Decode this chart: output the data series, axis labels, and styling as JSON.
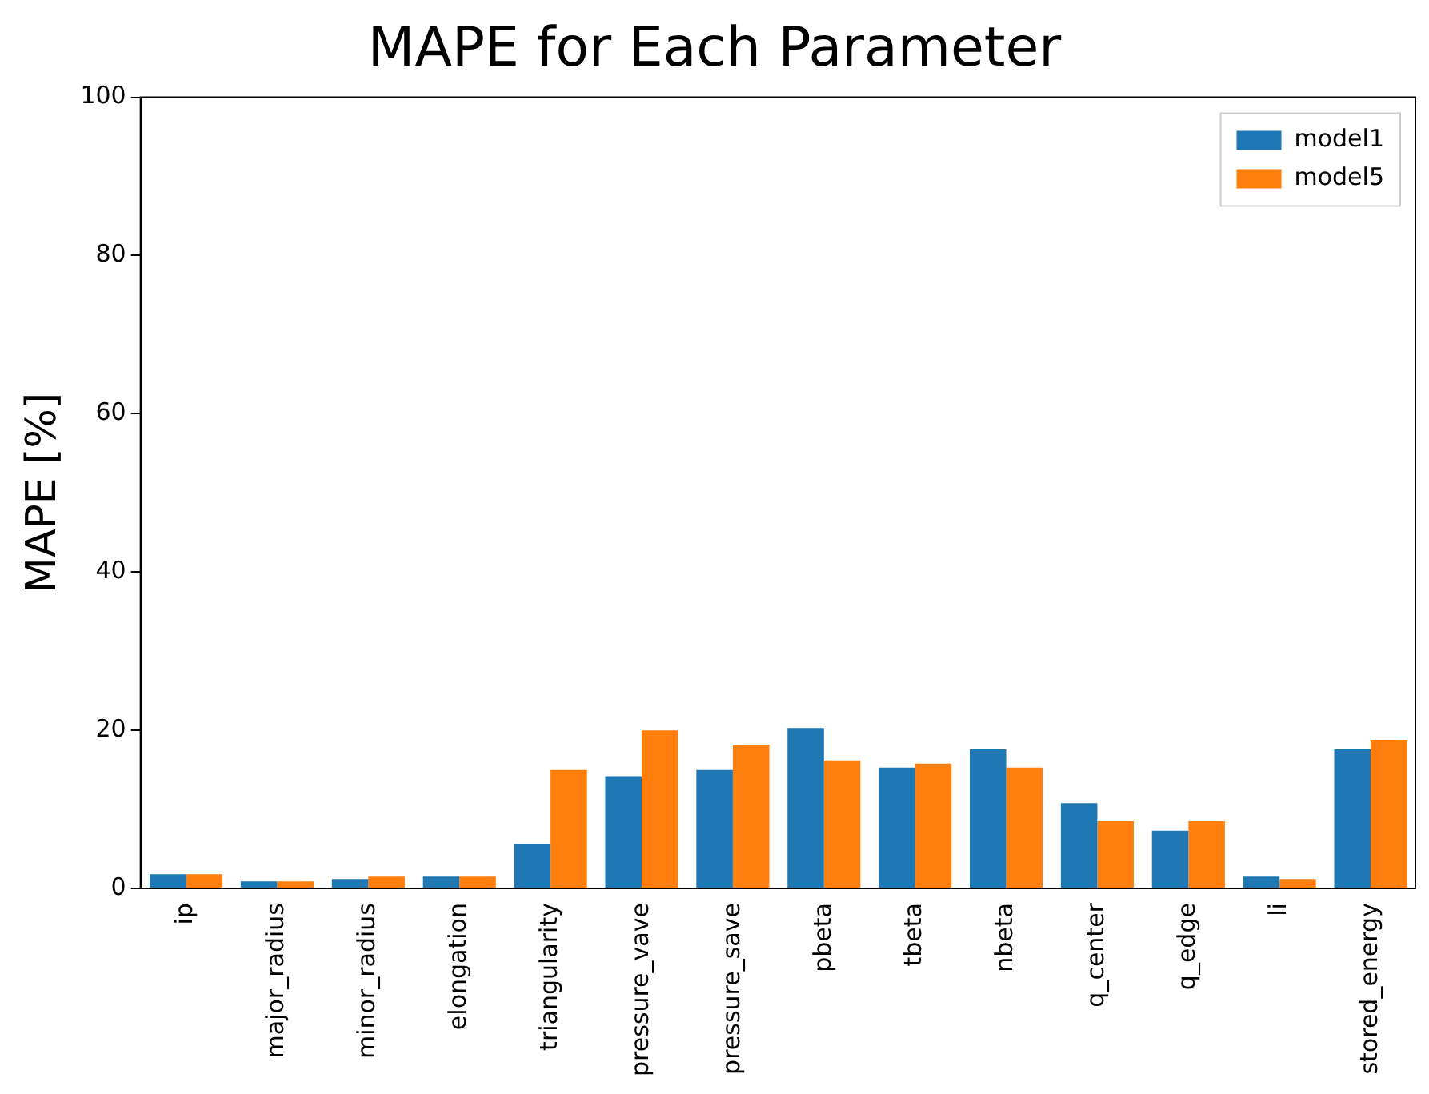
{
  "chart_data": {
    "type": "bar",
    "title": "MAPE for Each Parameter",
    "ylabel": "MAPE [%]",
    "categories": [
      "ip",
      "major_radius",
      "minor_radius",
      "elongation",
      "triangularity",
      "pressure_vave",
      "pressure_save",
      "pbeta",
      "tbeta",
      "nbeta",
      "q_center",
      "q_edge",
      "li",
      "stored_energy"
    ],
    "series": [
      {
        "name": "model1",
        "color": "#1f77b4",
        "values": [
          1.8,
          0.9,
          1.2,
          1.5,
          5.6,
          14.2,
          15.0,
          20.3,
          15.3,
          17.6,
          10.8,
          7.3,
          1.5,
          17.6
        ]
      },
      {
        "name": "model5",
        "color": "#ff7f0e",
        "values": [
          1.8,
          0.9,
          1.5,
          1.5,
          15.0,
          20.0,
          18.2,
          16.2,
          15.8,
          15.3,
          8.5,
          8.5,
          1.2,
          18.8
        ]
      }
    ],
    "ylim": [
      0,
      100
    ],
    "yticks": [
      0,
      20,
      40,
      60,
      80,
      100
    ],
    "grid": false,
    "legend": "top right"
  }
}
